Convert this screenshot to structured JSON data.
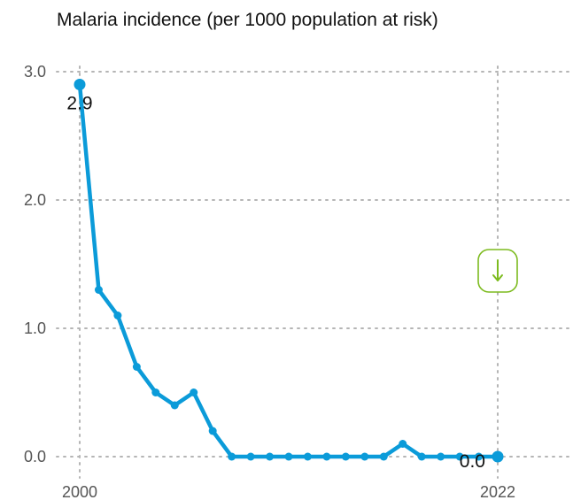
{
  "chart_data": {
    "type": "line",
    "title": "Malaria incidence (per 1000 population at risk)",
    "xlabel": "",
    "ylabel": "",
    "x": [
      2000,
      2001,
      2002,
      2003,
      2004,
      2005,
      2006,
      2007,
      2008,
      2009,
      2010,
      2011,
      2012,
      2013,
      2014,
      2015,
      2016,
      2017,
      2018,
      2019,
      2020,
      2021,
      2022
    ],
    "series": [
      {
        "values": [
          2.9,
          1.3,
          1.1,
          0.7,
          0.5,
          0.4,
          0.5,
          0.2,
          0.0,
          0.0,
          0.0,
          0.0,
          0.0,
          0.0,
          0.0,
          0.0,
          0.0,
          0.1,
          0.0,
          0.0,
          0.0,
          0.0,
          0.0
        ]
      }
    ],
    "ylim": [
      0,
      3
    ],
    "xlim": [
      2000,
      2022
    ],
    "y_ticks": [
      "0.0",
      "1.0",
      "2.0",
      "3.0"
    ],
    "x_ticks": [
      "2000",
      "2022"
    ],
    "data_labels": [
      {
        "x": 2000,
        "text": "2.9"
      },
      {
        "x": 2022,
        "text": "0.0"
      }
    ],
    "trend_indicator": "arrow-down-icon",
    "grid": true,
    "colors": {
      "line": "#0b9bd9",
      "trend": "#7dbb1f",
      "grid": "#b5b5b5"
    }
  }
}
